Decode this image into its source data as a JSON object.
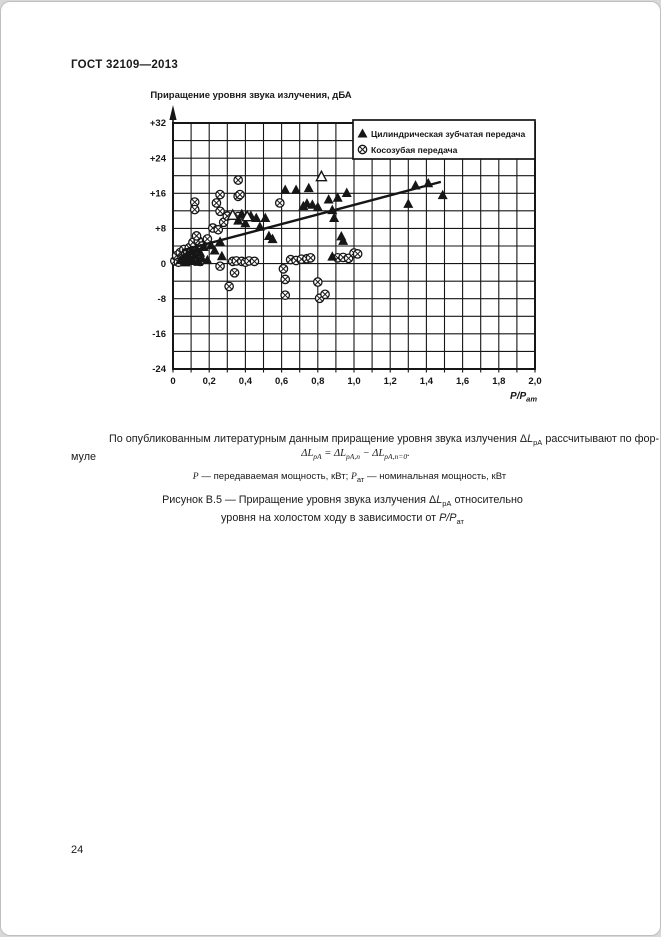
{
  "page": {
    "header": "ГОСТ 32109—2013",
    "page_number": "24"
  },
  "chart": {
    "title": "Приращение уровня звука излучения, дБА",
    "legend": [
      {
        "marker": "filled-triangle",
        "label": "Цилиндрическая зубчатая передача"
      },
      {
        "marker": "crossed-circle",
        "label": "Косозубая передача"
      }
    ],
    "x_axis": {
      "label_base": "P/P",
      "label_sub": "ат",
      "ticks": [
        "0",
        "0,2",
        "0,4",
        "0,6",
        "0,8",
        "1,0",
        "1,2",
        "1,4",
        "1,6",
        "1,8",
        "2,0"
      ]
    },
    "y_axis": {
      "ticks": [
        "+32",
        "+24",
        "+16",
        "+8",
        "0",
        "-8",
        "-16",
        "-24"
      ]
    }
  },
  "chart_data": {
    "type": "scatter",
    "title": "Приращение уровня звука излучения, дБА",
    "xlabel": "P/P_ат",
    "ylabel": "Приращение уровня звука излучения, дБА",
    "xlim": [
      0,
      2.0
    ],
    "ylim": [
      -24,
      32
    ],
    "grid": {
      "x_step": 0.1,
      "y_step": 4,
      "visible": true
    },
    "legend_position": "top-right",
    "series": [
      {
        "name": "Цилиндрическая зубчатая передача",
        "marker": "filled-triangle",
        "points": [
          [
            0.04,
            0.8
          ],
          [
            0.06,
            1.5
          ],
          [
            0.07,
            0.3
          ],
          [
            0.08,
            2.2
          ],
          [
            0.09,
            1.0
          ],
          [
            0.1,
            2.8
          ],
          [
            0.11,
            0.6
          ],
          [
            0.12,
            1.8
          ],
          [
            0.13,
            3.2
          ],
          [
            0.14,
            0.4
          ],
          [
            0.15,
            2.5
          ],
          [
            0.16,
            1.2
          ],
          [
            0.17,
            3.8
          ],
          [
            0.19,
            0.8
          ],
          [
            0.21,
            4.2
          ],
          [
            0.23,
            3.0
          ],
          [
            0.26,
            5.0
          ],
          [
            0.27,
            1.7
          ],
          [
            0.36,
            9.8
          ],
          [
            0.38,
            11.3
          ],
          [
            0.4,
            9.2
          ],
          [
            0.43,
            10.9
          ],
          [
            0.46,
            10.4
          ],
          [
            0.48,
            8.4
          ],
          [
            0.51,
            10.4
          ],
          [
            0.53,
            6.3
          ],
          [
            0.55,
            5.6
          ],
          [
            0.62,
            16.8
          ],
          [
            0.68,
            16.8
          ],
          [
            0.75,
            17.2
          ],
          [
            0.72,
            13.1
          ],
          [
            0.74,
            13.7
          ],
          [
            0.77,
            13.4
          ],
          [
            0.8,
            12.9
          ],
          [
            0.86,
            14.6
          ],
          [
            0.88,
            12.2
          ],
          [
            0.89,
            10.4
          ],
          [
            0.91,
            15.0
          ],
          [
            0.96,
            16.1
          ],
          [
            0.93,
            6.2
          ],
          [
            0.94,
            5.2
          ],
          [
            0.88,
            1.6
          ],
          [
            1.3,
            13.6
          ],
          [
            1.34,
            17.8
          ],
          [
            1.41,
            18.3
          ],
          [
            1.49,
            15.6
          ]
        ],
        "open_points": [
          [
            0.33,
            11.0
          ],
          [
            0.41,
            10.7
          ],
          [
            0.82,
            19.8
          ]
        ]
      },
      {
        "name": "Косозубая передача",
        "marker": "crossed-circle",
        "points": [
          [
            0.01,
            0.6
          ],
          [
            0.02,
            1.8
          ],
          [
            0.03,
            0.3
          ],
          [
            0.04,
            2.5
          ],
          [
            0.05,
            1.2
          ],
          [
            0.06,
            3.2
          ],
          [
            0.07,
            2.0
          ],
          [
            0.08,
            0.8
          ],
          [
            0.09,
            3.6
          ],
          [
            0.1,
            1.5
          ],
          [
            0.11,
            4.8
          ],
          [
            0.12,
            2.2
          ],
          [
            0.14,
            5.2
          ],
          [
            0.15,
            0.5
          ],
          [
            0.16,
            4.0
          ],
          [
            0.19,
            5.6
          ],
          [
            0.13,
            6.3
          ],
          [
            0.12,
            14.0
          ],
          [
            0.12,
            12.3
          ],
          [
            0.22,
            8.1
          ],
          [
            0.24,
            13.8
          ],
          [
            0.25,
            7.7
          ],
          [
            0.26,
            11.9
          ],
          [
            0.26,
            15.7
          ],
          [
            0.28,
            9.4
          ],
          [
            0.3,
            10.8
          ],
          [
            0.36,
            15.3
          ],
          [
            0.36,
            19.0
          ],
          [
            0.37,
            15.7
          ],
          [
            0.36,
            10.7
          ],
          [
            0.59,
            13.8
          ],
          [
            0.26,
            -0.6
          ],
          [
            0.31,
            -5.2
          ],
          [
            0.33,
            0.5
          ],
          [
            0.34,
            -2.1
          ],
          [
            0.35,
            0.6
          ],
          [
            0.38,
            0.5
          ],
          [
            0.4,
            0.3
          ],
          [
            0.42,
            0.6
          ],
          [
            0.45,
            0.5
          ],
          [
            0.65,
            0.9
          ],
          [
            0.68,
            0.7
          ],
          [
            0.71,
            1.0
          ],
          [
            0.74,
            1.1
          ],
          [
            0.76,
            1.3
          ],
          [
            0.91,
            1.3
          ],
          [
            0.94,
            1.4
          ],
          [
            0.97,
            1.2
          ],
          [
            1.0,
            2.4
          ],
          [
            1.02,
            2.2
          ],
          [
            0.61,
            -1.2
          ],
          [
            0.62,
            -3.6
          ],
          [
            0.62,
            -7.2
          ],
          [
            0.8,
            -4.2
          ],
          [
            0.81,
            -7.9
          ],
          [
            0.84,
            -7.0
          ]
        ]
      },
      {
        "name": "trend-line",
        "type": "line",
        "points": [
          [
            0.05,
            3.0
          ],
          [
            1.48,
            18.6
          ]
        ]
      }
    ]
  },
  "paragraph": {
    "t1": "По опубликованным литературным данным приращение уровня звука излучения Δ",
    "sym": "L",
    "sym_sub": "pA",
    "t2": " рассчитывают по фор-",
    "t3": "муле"
  },
  "formula": {
    "d1": "Δ",
    "L1": "L",
    "s1": "pA",
    "eq": " = Δ",
    "L2": "L",
    "s2": "pA,п",
    "mi": " − Δ",
    "L3": "L",
    "s3": "pA,п=0",
    "dot": "."
  },
  "definitions": {
    "p1": "P",
    "t1": " — передаваемая мощность, кВт; ",
    "p2": "P",
    "s2": "ат",
    "t2": " — номинальная мощность, кВт"
  },
  "caption": {
    "l1a": "Рисунок В.5 — Приращение уровня звука излучения Δ",
    "l1i": "L",
    "l1s": "pA",
    "l1b": " относительно",
    "l2a": "уровня на холостом ходу в зависимости от ",
    "l2i": "P/P",
    "l2s": "ат"
  }
}
